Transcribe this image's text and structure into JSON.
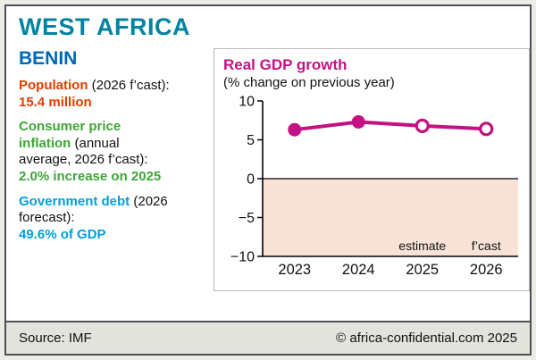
{
  "colors": {
    "teal": "#0084a1",
    "blue": "#0069b4",
    "red": "#e13d00",
    "green": "#3ea636",
    "cyan": "#00a0dd",
    "magenta": "#c31283",
    "negative_shade": "#f8e3d6"
  },
  "header": {
    "region": "WEST AFRICA",
    "country": "BENIN"
  },
  "stats": [
    {
      "label": "Population",
      "note": " (2026 f’cast):",
      "value": "15.4 million",
      "color": "red"
    },
    {
      "label": "Consumer price inflation",
      "note": " (annual average, 2026 f’cast):",
      "value": "2.0% increase on 2025",
      "color": "green"
    },
    {
      "label": "Government debt",
      "note": " (2026 forecast):",
      "value": "49.6% of GDP",
      "color": "cyan"
    }
  ],
  "chart_data": {
    "type": "line",
    "title": "Real GDP growth",
    "subtitle": "(% change on previous year)",
    "categories": [
      "2023",
      "2024",
      "2025",
      "2026"
    ],
    "series": [
      {
        "name": "Real GDP growth",
        "values": [
          6.3,
          7.3,
          6.8,
          6.4
        ]
      }
    ],
    "point_styles": [
      "filled",
      "filled",
      "open",
      "open"
    ],
    "annotations": [
      {
        "text": "estimate",
        "x": "2025"
      },
      {
        "text": "f’cast",
        "x": "2026"
      }
    ],
    "xlabel": "",
    "ylabel": "",
    "ylim": [
      -10,
      10
    ],
    "yticks": [
      10,
      5,
      0,
      -5,
      -10
    ],
    "grid": false,
    "legend_position": "none",
    "negative_region_shaded": true
  },
  "footer": {
    "source": "Source: IMF",
    "credit": "© africa-confidential.com 2025"
  }
}
